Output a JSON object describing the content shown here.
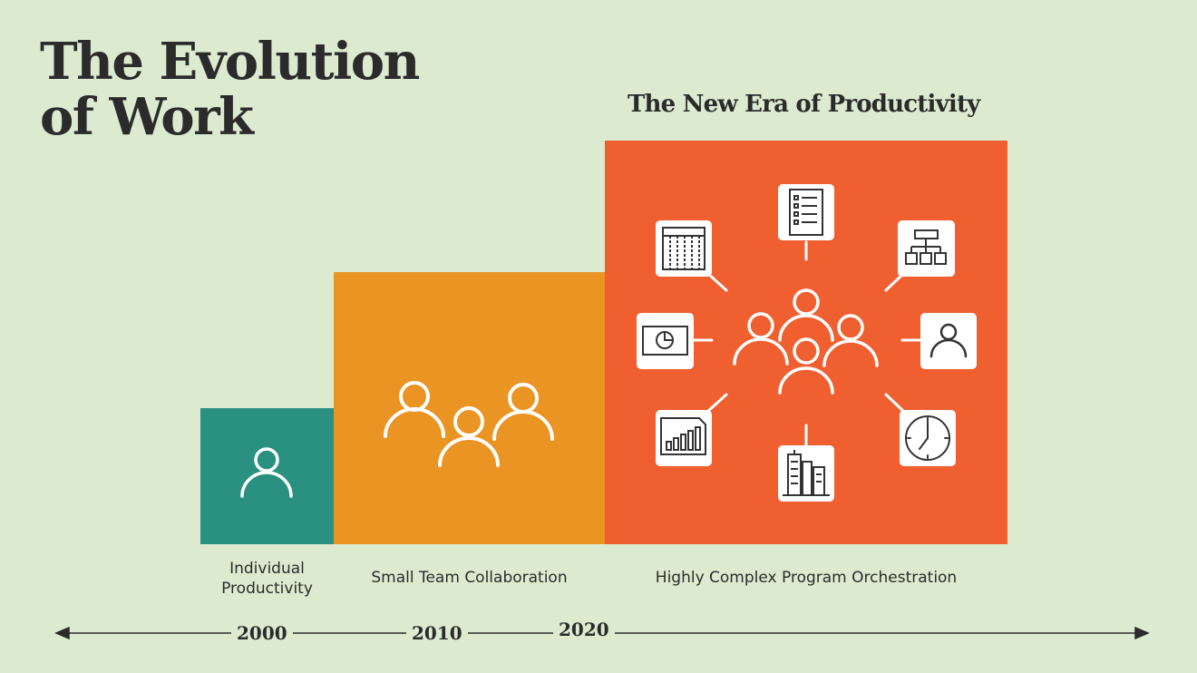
{
  "title": {
    "line1": "The Evolution",
    "line2": "of Work"
  },
  "era_heading": "The New Era of  Productivity",
  "stages": [
    {
      "year": "2000",
      "label_line1": "Individual",
      "label_line2": "Productivity",
      "color": "#2a9180",
      "icon": "person-icon"
    },
    {
      "year": "2010",
      "label": "Small Team Collaboration",
      "color": "#ea9423",
      "icon": "team-icon"
    },
    {
      "year": "2020",
      "label": "Highly Complex Program Orchestration",
      "color": "#ef5f30",
      "icon": "large-group-icon",
      "satellite_icons": [
        "spreadsheet-icon",
        "checklist-icon",
        "org-chart-icon",
        "pie-chart-slide-icon",
        "user-profile-icon",
        "bar-chart-icon",
        "office-building-icon",
        "clock-icon"
      ]
    }
  ],
  "colors": {
    "background": "#dcebd0",
    "text": "#2b2b2b",
    "icon_stroke": "#ffffff"
  }
}
